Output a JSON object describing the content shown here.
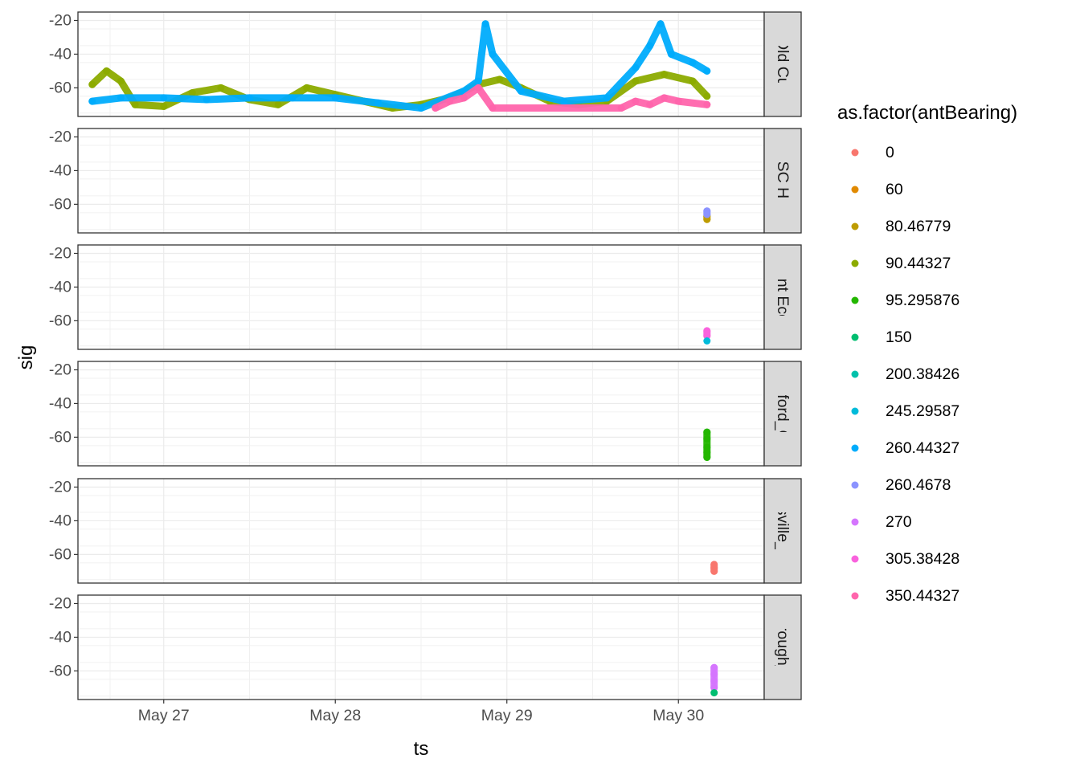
{
  "chart_data": {
    "type": "scatter",
    "title": "",
    "xlabel": "ts",
    "ylabel": "sig",
    "x_domain": [
      "2024-05-26 12:00",
      "2024-05-30 12:00"
    ],
    "x_ticks": [
      {
        "value": "2024-05-27",
        "label": "May 27"
      },
      {
        "value": "2024-05-28",
        "label": "May 28"
      },
      {
        "value": "2024-05-29",
        "label": "May 29"
      },
      {
        "value": "2024-05-30",
        "label": "May 30"
      }
    ],
    "ylim": [
      -77,
      -15
    ],
    "y_ticks": [
      -20,
      -40,
      -60
    ],
    "y_tick_labels": [
      "-20",
      "-40",
      "-60"
    ],
    "grid": true,
    "facet_by": "station",
    "legend": {
      "title": "as.factor(antBearing)",
      "position": "right",
      "entries": [
        {
          "label": "0",
          "color": "#F8766D"
        },
        {
          "label": "60",
          "color": "#E18A00"
        },
        {
          "label": "80.46779",
          "color": "#BE9C00"
        },
        {
          "label": "90.44327",
          "color": "#8CAB00"
        },
        {
          "label": "95.295876",
          "color": "#24B700"
        },
        {
          "label": "150",
          "color": "#00BE70"
        },
        {
          "label": "200.38426",
          "color": "#00C1AB"
        },
        {
          "label": "245.29587",
          "color": "#00BBDA"
        },
        {
          "label": "260.44327",
          "color": "#00ACFC"
        },
        {
          "label": "260.4678",
          "color": "#8B93FF"
        },
        {
          "label": "270",
          "color": "#D575FE"
        },
        {
          "label": "305.38428",
          "color": "#F962DD"
        },
        {
          "label": "350.44327",
          "color": "#FF65AC"
        }
      ]
    },
    "panels": [
      {
        "strip": "Old Cut",
        "series": [
          {
            "bearing": "90.44327",
            "points": [
              [
                "2024-05-26 14:00",
                -58
              ],
              [
                "2024-05-26 16:00",
                -50
              ],
              [
                "2024-05-26 18:00",
                -56
              ],
              [
                "2024-05-26 20:00",
                -70
              ],
              [
                "2024-05-27 00:00",
                -71
              ],
              [
                "2024-05-27 04:00",
                -63
              ],
              [
                "2024-05-27 08:00",
                -60
              ],
              [
                "2024-05-27 12:00",
                -67
              ],
              [
                "2024-05-27 16:00",
                -70
              ],
              [
                "2024-05-27 20:00",
                -60
              ],
              [
                "2024-05-28 00:00",
                -64
              ],
              [
                "2024-05-28 04:00",
                -68
              ],
              [
                "2024-05-28 08:00",
                -72
              ],
              [
                "2024-05-28 12:00",
                -70
              ],
              [
                "2024-05-28 16:00",
                -66
              ],
              [
                "2024-05-28 20:00",
                -58
              ],
              [
                "2024-05-28 23:00",
                -55
              ],
              [
                "2024-05-29 02:00",
                -60
              ],
              [
                "2024-05-29 06:00",
                -68
              ],
              [
                "2024-05-29 10:00",
                -70
              ],
              [
                "2024-05-29 14:00",
                -68
              ],
              [
                "2024-05-29 18:00",
                -56
              ],
              [
                "2024-05-29 22:00",
                -52
              ],
              [
                "2024-05-30 02:00",
                -56
              ],
              [
                "2024-05-30 04:00",
                -65
              ]
            ]
          },
          {
            "bearing": "260.44327",
            "points": [
              [
                "2024-05-26 14:00",
                -68
              ],
              [
                "2024-05-26 18:00",
                -66
              ],
              [
                "2024-05-27 00:00",
                -66
              ],
              [
                "2024-05-27 06:00",
                -67
              ],
              [
                "2024-05-27 12:00",
                -66
              ],
              [
                "2024-05-27 18:00",
                -66
              ],
              [
                "2024-05-28 00:00",
                -66
              ],
              [
                "2024-05-28 06:00",
                -69
              ],
              [
                "2024-05-28 12:00",
                -72
              ],
              [
                "2024-05-28 18:00",
                -62
              ],
              [
                "2024-05-28 20:00",
                -56
              ],
              [
                "2024-05-28 21:00",
                -22
              ],
              [
                "2024-05-28 22:00",
                -40
              ],
              [
                "2024-05-29 02:00",
                -62
              ],
              [
                "2024-05-29 08:00",
                -68
              ],
              [
                "2024-05-29 14:00",
                -66
              ],
              [
                "2024-05-29 18:00",
                -48
              ],
              [
                "2024-05-29 20:00",
                -35
              ],
              [
                "2024-05-29 21:30",
                -22
              ],
              [
                "2024-05-29 23:00",
                -40
              ],
              [
                "2024-05-30 02:00",
                -45
              ],
              [
                "2024-05-30 04:00",
                -50
              ]
            ]
          },
          {
            "bearing": "350.44327",
            "points": [
              [
                "2024-05-28 14:00",
                -72
              ],
              [
                "2024-05-28 16:00",
                -68
              ],
              [
                "2024-05-28 18:00",
                -66
              ],
              [
                "2024-05-28 20:00",
                -60
              ],
              [
                "2024-05-28 22:00",
                -72
              ],
              [
                "2024-05-29 16:00",
                -72
              ],
              [
                "2024-05-29 18:00",
                -68
              ],
              [
                "2024-05-29 20:00",
                -70
              ],
              [
                "2024-05-29 22:00",
                -66
              ],
              [
                "2024-05-30 00:00",
                -68
              ],
              [
                "2024-05-30 04:00",
                -70
              ]
            ]
          }
        ]
      },
      {
        "strip": "BSC HQ",
        "series": [
          {
            "bearing": "80.46779",
            "points": [
              [
                "2024-05-30 04:00",
                -67
              ],
              [
                "2024-05-30 04:00",
                -69
              ]
            ]
          },
          {
            "bearing": "260.4678",
            "points": [
              [
                "2024-05-30 04:00",
                -64
              ],
              [
                "2024-05-30 04:00",
                -66
              ]
            ]
          }
        ]
      },
      {
        "strip": "Point Eco-A",
        "series": [
          {
            "bearing": "305.38428",
            "points": [
              [
                "2024-05-30 04:00",
                -66
              ],
              [
                "2024-05-30 04:00",
                -69
              ]
            ]
          },
          {
            "bearing": "245.29587",
            "points": [
              [
                "2024-05-30 04:00",
                -72
              ]
            ]
          }
        ]
      },
      {
        "strip": "aterford_Qua",
        "series": [
          {
            "bearing": "95.295876",
            "points": [
              [
                "2024-05-30 04:00",
                -57
              ],
              [
                "2024-05-30 04:00",
                -61
              ],
              [
                "2024-05-30 04:00",
                -66
              ],
              [
                "2024-05-30 04:00",
                -69
              ],
              [
                "2024-05-30 04:00",
                -72
              ]
            ]
          }
        ]
      },
      {
        "strip": "gersville_Lan",
        "series": [
          {
            "bearing": "0",
            "points": [
              [
                "2024-05-30 05:00",
                -66
              ],
              [
                "2024-05-30 05:00",
                -68
              ],
              [
                "2024-05-30 05:00",
                -70
              ]
            ]
          }
        ]
      },
      {
        "strip": "nborough_Qu",
        "series": [
          {
            "bearing": "270",
            "points": [
              [
                "2024-05-30 05:00",
                -58
              ],
              [
                "2024-05-30 05:00",
                -62
              ],
              [
                "2024-05-30 05:00",
                -66
              ],
              [
                "2024-05-30 05:00",
                -70
              ]
            ]
          },
          {
            "bearing": "150",
            "points": [
              [
                "2024-05-30 05:00",
                -73
              ]
            ]
          }
        ]
      }
    ]
  }
}
